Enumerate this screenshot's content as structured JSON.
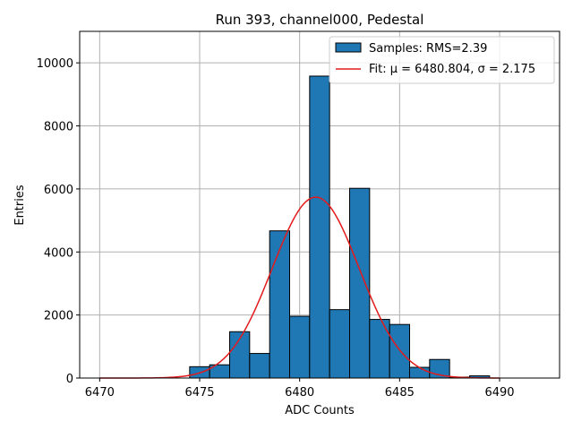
{
  "chart_data": {
    "type": "bar",
    "title": "Run 393, channel000, Pedestal",
    "xlabel": "ADC Counts",
    "ylabel": "Entries",
    "xlim": [
      6469,
      6493
    ],
    "ylim": [
      0,
      11000
    ],
    "xticks": [
      6470,
      6475,
      6480,
      6485,
      6490
    ],
    "yticks": [
      0,
      2000,
      4000,
      6000,
      8000,
      10000
    ],
    "grid": true,
    "bin_width": 1,
    "bins": [
      {
        "left": 6474.5,
        "count": 360
      },
      {
        "left": 6475.5,
        "count": 420
      },
      {
        "left": 6476.5,
        "count": 1470
      },
      {
        "left": 6477.5,
        "count": 780
      },
      {
        "left": 6478.5,
        "count": 4670
      },
      {
        "left": 6479.5,
        "count": 1960
      },
      {
        "left": 6480.5,
        "count": 9580
      },
      {
        "left": 6481.5,
        "count": 2170
      },
      {
        "left": 6482.5,
        "count": 6020
      },
      {
        "left": 6483.5,
        "count": 1860
      },
      {
        "left": 6484.5,
        "count": 1700
      },
      {
        "left": 6485.5,
        "count": 340
      },
      {
        "left": 6486.5,
        "count": 590
      },
      {
        "left": 6487.5,
        "count": 30
      },
      {
        "left": 6488.5,
        "count": 70
      }
    ],
    "fit": {
      "mu": 6480.804,
      "sigma": 2.175,
      "amplitude": 5740,
      "x_range": [
        6470,
        6490
      ]
    },
    "legend": {
      "position": "top-right",
      "entries": [
        {
          "label": "Samples: RMS=2.39",
          "kind": "patch"
        },
        {
          "label": "Fit: μ = 6480.804, σ = 2.175",
          "kind": "line"
        }
      ]
    },
    "colors": {
      "bar_fill": "#1f77b4",
      "bar_edge": "#000000",
      "fit_line": "#e31a1c",
      "grid": "#b0b0b0"
    }
  }
}
